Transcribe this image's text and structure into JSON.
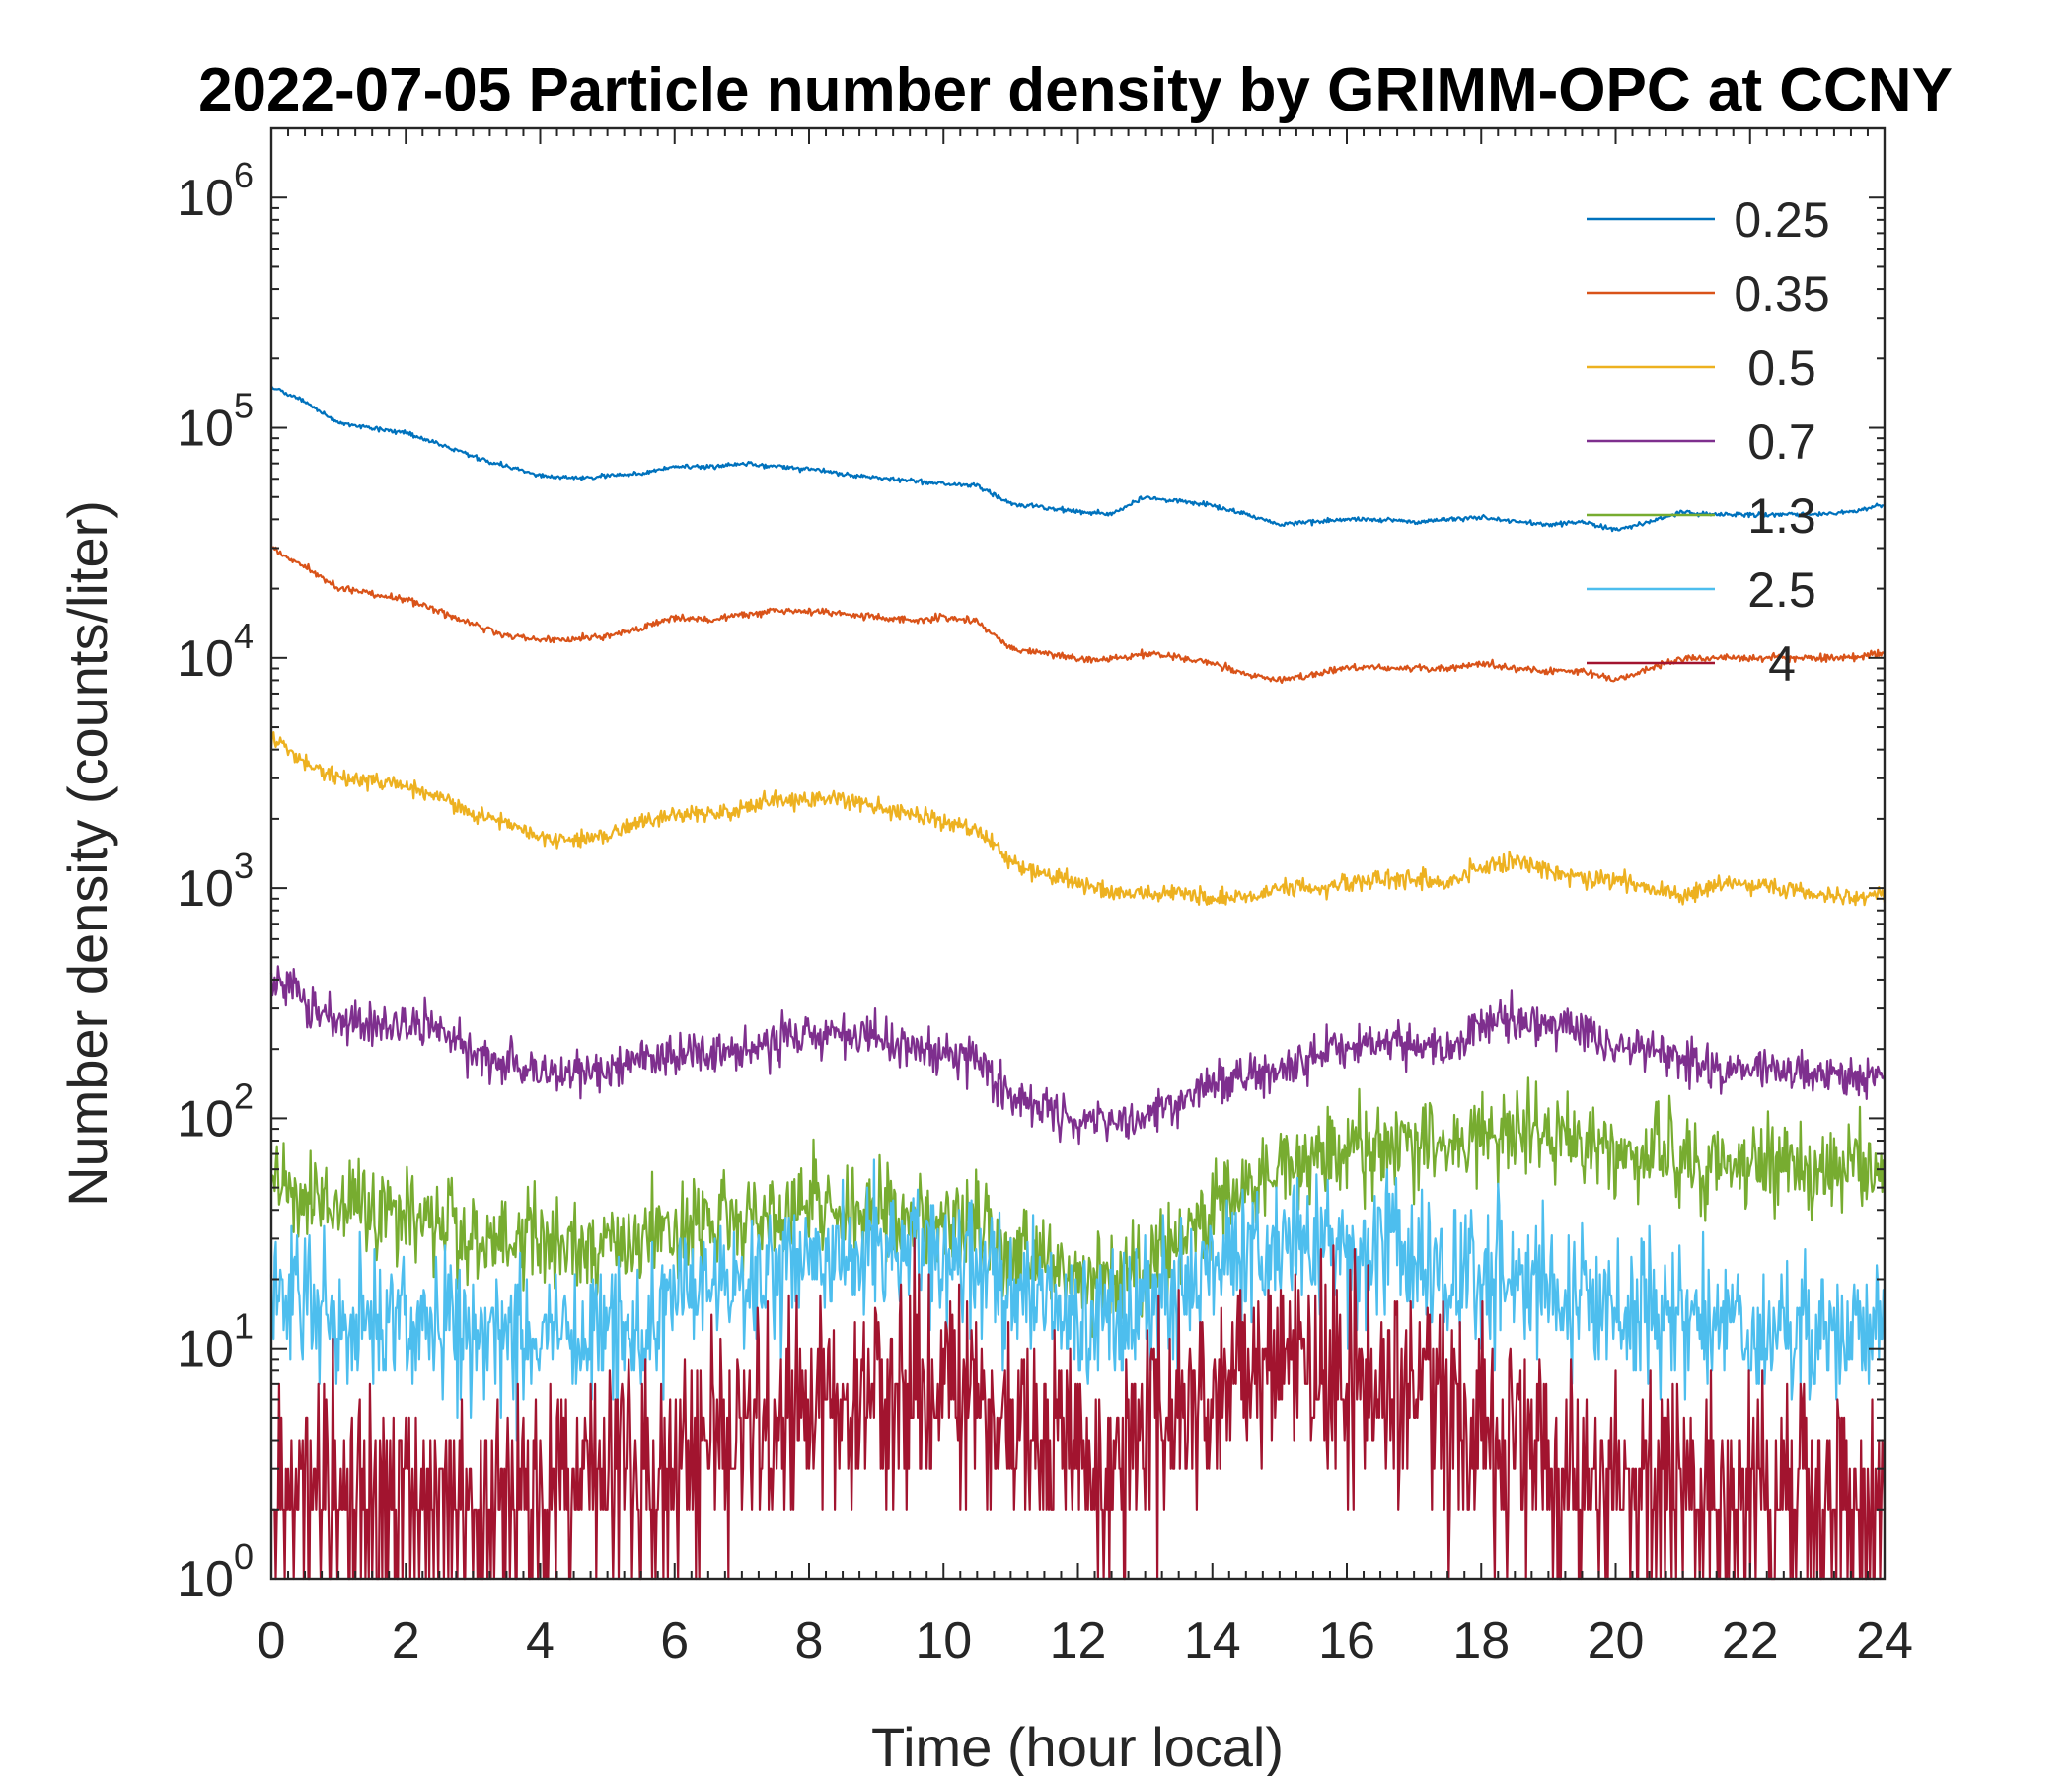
{
  "chart_data": {
    "type": "line",
    "title": "2022-07-05 Particle number density by GRIMM-OPC at CCNY",
    "xlabel": "Time (hour local)",
    "ylabel": "Number density (counts/liter)",
    "xlim": [
      0,
      24
    ],
    "ylim": [
      1,
      2000000
    ],
    "yscale": "log",
    "x_ticks": [
      "0",
      "2",
      "4",
      "6",
      "8",
      "10",
      "12",
      "14",
      "16",
      "18",
      "20",
      "22",
      "24"
    ],
    "y_ticks": [
      {
        "base": "10",
        "exp": "0"
      },
      {
        "base": "10",
        "exp": "1"
      },
      {
        "base": "10",
        "exp": "2"
      },
      {
        "base": "10",
        "exp": "3"
      },
      {
        "base": "10",
        "exp": "4"
      },
      {
        "base": "10",
        "exp": "5"
      },
      {
        "base": "10",
        "exp": "6"
      }
    ],
    "legend_position": "top-right",
    "x": [
      0,
      0.5,
      1,
      1.5,
      2,
      2.5,
      3,
      3.5,
      4,
      4.5,
      5,
      5.5,
      6,
      6.5,
      7,
      7.5,
      8,
      8.5,
      9,
      9.5,
      10,
      10.5,
      11,
      11.5,
      12,
      12.5,
      13,
      13.5,
      14,
      14.5,
      15,
      15.5,
      16,
      16.5,
      17,
      17.5,
      18,
      18.5,
      19,
      19.5,
      20,
      20.5,
      21,
      21.5,
      22,
      22.5,
      23,
      23.5,
      24
    ],
    "series": [
      {
        "name": "0.25",
        "color": "#0072BD",
        "noise": 0.02,
        "values": [
          150000,
          130000,
          105000,
          100000,
          95000,
          85000,
          75000,
          68000,
          62000,
          60000,
          62000,
          63000,
          68000,
          67000,
          70000,
          68000,
          66000,
          63000,
          61000,
          59000,
          57000,
          56000,
          47000,
          45000,
          43000,
          42000,
          50000,
          48000,
          46000,
          42000,
          38000,
          39000,
          40000,
          40000,
          39000,
          40000,
          41000,
          39000,
          38000,
          39000,
          36000,
          39000,
          43000,
          42000,
          42000,
          42000,
          42000,
          43000,
          46000
        ]
      },
      {
        "name": "0.35",
        "color": "#D95319",
        "noise": 0.03,
        "values": [
          30000,
          25000,
          20000,
          19000,
          18000,
          16000,
          14000,
          12500,
          12000,
          12000,
          12500,
          13500,
          15000,
          14500,
          15500,
          16000,
          16000,
          15500,
          15000,
          14500,
          15000,
          14500,
          11000,
          10500,
          10000,
          9800,
          10500,
          10000,
          9500,
          8500,
          8000,
          8500,
          9000,
          9000,
          9000,
          9000,
          9500,
          9000,
          8800,
          8800,
          8000,
          9000,
          10000,
          10000,
          10000,
          10000,
          10000,
          10000,
          10500
        ]
      },
      {
        "name": "0.5",
        "color": "#EDB120",
        "noise": 0.08,
        "values": [
          4500,
          3500,
          3000,
          2900,
          2800,
          2500,
          2100,
          1900,
          1700,
          1600,
          1700,
          1900,
          2100,
          2100,
          2200,
          2400,
          2400,
          2400,
          2300,
          2100,
          1950,
          1800,
          1300,
          1150,
          1050,
          950,
          950,
          950,
          900,
          900,
          1000,
          1000,
          1050,
          1100,
          1100,
          1050,
          1250,
          1300,
          1200,
          1100,
          1100,
          1000,
          900,
          1050,
          1050,
          1000,
          950,
          900,
          950
        ]
      },
      {
        "name": "0.7",
        "color": "#7E2F8E",
        "noise": 0.18,
        "values": [
          400,
          320,
          270,
          260,
          260,
          240,
          190,
          170,
          160,
          155,
          160,
          175,
          190,
          190,
          200,
          215,
          230,
          230,
          230,
          200,
          185,
          175,
          125,
          110,
          95,
          95,
          100,
          120,
          140,
          150,
          160,
          190,
          210,
          215,
          210,
          200,
          260,
          270,
          260,
          240,
          210,
          200,
          175,
          170,
          160,
          160,
          155,
          150,
          150
        ]
      },
      {
        "name": "1.3",
        "color": "#77AC30",
        "noise": 0.4,
        "values": [
          55,
          45,
          40,
          38,
          37,
          35,
          32,
          30,
          30,
          29,
          29,
          30,
          33,
          35,
          38,
          40,
          42,
          42,
          40,
          38,
          38,
          35,
          28,
          22,
          20,
          20,
          23,
          30,
          40,
          50,
          60,
          65,
          70,
          72,
          75,
          80,
          90,
          90,
          85,
          80,
          75,
          70,
          65,
          62,
          60,
          60,
          60,
          60,
          60
        ]
      },
      {
        "name": "2.5",
        "color": "#4DBEEE",
        "noise": 0.6,
        "values": [
          16,
          14,
          13,
          13,
          13,
          13,
          12,
          12,
          12,
          11,
          12,
          13,
          16,
          18,
          20,
          22,
          24,
          26,
          26,
          25,
          24,
          22,
          18,
          16,
          14,
          14,
          15,
          18,
          22,
          26,
          28,
          28,
          26,
          26,
          24,
          22,
          22,
          20,
          18,
          16,
          15,
          14,
          13,
          13,
          13,
          12,
          12,
          12,
          12
        ]
      },
      {
        "name": "4",
        "color": "#A2142F",
        "noise": 1.0,
        "values": [
          2.5,
          2.4,
          2.3,
          2.3,
          2.4,
          2.3,
          2.3,
          2.3,
          2.4,
          2.5,
          2.6,
          2.8,
          3.2,
          4,
          4.5,
          5.5,
          6.5,
          7,
          7,
          7,
          6.5,
          6,
          5,
          4,
          3.5,
          3.5,
          4,
          5,
          6.5,
          7.5,
          8,
          8,
          7.5,
          7,
          6.5,
          6,
          4,
          3.5,
          3,
          2.8,
          2.6,
          2.5,
          2.5,
          2.4,
          2.3,
          2.3,
          2.3,
          2.3,
          2.3
        ]
      }
    ]
  }
}
